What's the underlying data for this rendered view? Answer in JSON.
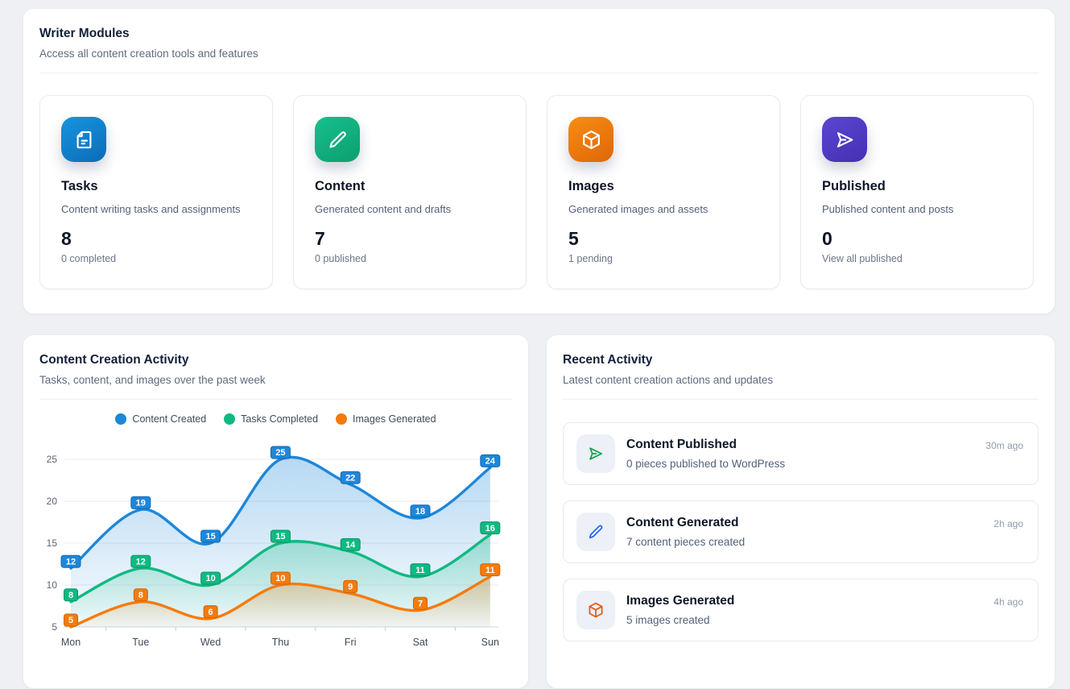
{
  "writer_modules": {
    "title": "Writer Modules",
    "subtitle": "Access all content creation tools and features",
    "modules": [
      {
        "title": "Tasks",
        "description": "Content writing tasks and assignments",
        "value": "8",
        "sub_label": "0 completed",
        "icon": "file-icon",
        "gradient": "linear-gradient(150deg,#1695df,#0b6cb8)"
      },
      {
        "title": "Content",
        "description": "Generated content and drafts",
        "value": "7",
        "sub_label": "0 published",
        "icon": "pencil-icon",
        "gradient": "linear-gradient(150deg,#17c08f,#0c9e6d)"
      },
      {
        "title": "Images",
        "description": "Generated images and assets",
        "value": "5",
        "sub_label": "1 pending",
        "icon": "cube-icon",
        "gradient": "linear-gradient(150deg,#f78d14,#e06607)"
      },
      {
        "title": "Published",
        "description": "Published content and posts",
        "value": "0",
        "sub_label": "View all published",
        "icon": "send-icon",
        "gradient": "linear-gradient(150deg,#5a46d3,#4530b2)"
      }
    ]
  },
  "activity_chart": {
    "title": "Content Creation Activity",
    "subtitle": "Tasks, content, and images over the past week"
  },
  "chart_data": {
    "type": "line",
    "title": "Content Creation Activity",
    "categories": [
      "Mon",
      "Tue",
      "Wed",
      "Thu",
      "Fri",
      "Sat",
      "Sun"
    ],
    "series": [
      {
        "name": "Content Created",
        "color": "#1d87d9",
        "badge_border": "#1069b5",
        "values": [
          12,
          19,
          15,
          25,
          22,
          18,
          24
        ]
      },
      {
        "name": "Tasks Completed",
        "color": "#10b981",
        "badge_border": "#0a9468",
        "values": [
          8,
          12,
          10,
          15,
          14,
          11,
          16
        ]
      },
      {
        "name": "Images Generated",
        "color": "#f57b0c",
        "badge_border": "#cf6406",
        "values": [
          5,
          8,
          6,
          10,
          9,
          7,
          11
        ]
      }
    ],
    "y_ticks": [
      5,
      10,
      15,
      20,
      25
    ],
    "ylim": [
      5,
      26
    ],
    "xlabel": "",
    "ylabel": "",
    "grid": true,
    "legend_position": "top",
    "area_fill": true,
    "point_labels": true
  },
  "recent_activity": {
    "title": "Recent Activity",
    "subtitle": "Latest content creation actions and updates",
    "items": [
      {
        "title": "Content Published",
        "description": "0 pieces published to WordPress",
        "time": "30m ago",
        "icon": "send-icon",
        "icon_color": "#16a34a"
      },
      {
        "title": "Content Generated",
        "description": "7 content pieces created",
        "time": "2h ago",
        "icon": "pencil-icon",
        "icon_color": "#2563eb"
      },
      {
        "title": "Images Generated",
        "description": "5 images created",
        "time": "4h ago",
        "icon": "cube-icon",
        "icon_color": "#ea580c"
      }
    ]
  }
}
